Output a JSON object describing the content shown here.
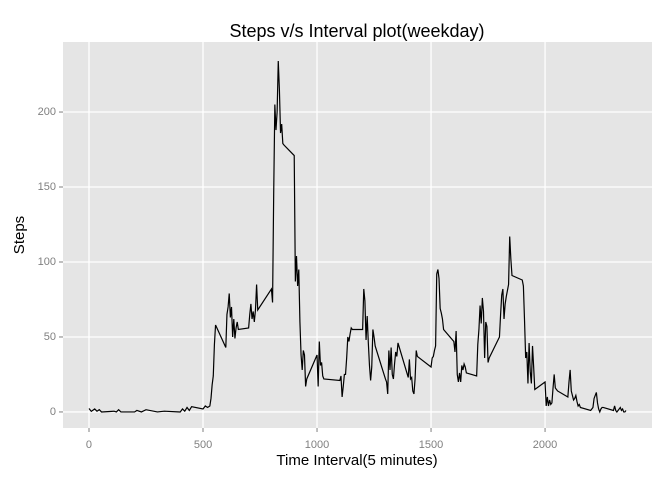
{
  "chart_data": {
    "type": "line",
    "title": "Steps v/s Interval plot(weekday)",
    "x_label": "Time Interval(5 minutes)",
    "y_label": "Steps",
    "color": "#000000",
    "grid": true,
    "xlim": [
      -114,
      2469
    ],
    "ylim": [
      -10.7,
      246.7
    ],
    "xticks": [
      0,
      500,
      1000,
      1500,
      2000
    ],
    "yticks": [
      0,
      50,
      100,
      150,
      200
    ],
    "x": [
      0,
      10,
      25,
      35,
      45,
      55,
      100,
      110,
      120,
      130,
      140,
      200,
      210,
      230,
      250,
      300,
      330,
      400,
      410,
      420,
      430,
      440,
      450,
      500,
      510,
      520,
      530,
      535,
      540,
      545,
      550,
      555,
      600,
      605,
      610,
      615,
      620,
      625,
      630,
      635,
      640,
      645,
      650,
      655,
      700,
      705,
      710,
      715,
      720,
      725,
      730,
      735,
      740,
      800,
      805,
      810,
      815,
      820,
      825,
      830,
      835,
      840,
      845,
      850,
      855,
      900,
      905,
      910,
      915,
      920,
      925,
      930,
      935,
      940,
      945,
      950,
      955,
      1000,
      1005,
      1010,
      1015,
      1020,
      1025,
      1030,
      1100,
      1105,
      1110,
      1115,
      1120,
      1125,
      1130,
      1135,
      1140,
      1145,
      1150,
      1155,
      1200,
      1205,
      1210,
      1215,
      1220,
      1225,
      1230,
      1235,
      1240,
      1245,
      1250,
      1255,
      1300,
      1305,
      1310,
      1315,
      1320,
      1325,
      1330,
      1335,
      1340,
      1345,
      1350,
      1355,
      1400,
      1405,
      1410,
      1415,
      1420,
      1425,
      1430,
      1435,
      1440,
      1500,
      1505,
      1510,
      1515,
      1520,
      1525,
      1530,
      1535,
      1540,
      1545,
      1550,
      1555,
      1600,
      1605,
      1610,
      1615,
      1620,
      1625,
      1630,
      1635,
      1640,
      1645,
      1650,
      1655,
      1700,
      1705,
      1710,
      1715,
      1720,
      1725,
      1730,
      1735,
      1740,
      1745,
      1750,
      1755,
      1800,
      1805,
      1810,
      1815,
      1820,
      1825,
      1830,
      1835,
      1840,
      1845,
      1850,
      1855,
      1900,
      1905,
      1910,
      1915,
      1920,
      1925,
      1930,
      1935,
      1940,
      1945,
      1950,
      1955,
      2000,
      2005,
      2010,
      2015,
      2020,
      2025,
      2030,
      2035,
      2040,
      2045,
      2050,
      2055,
      2100,
      2105,
      2110,
      2115,
      2120,
      2125,
      2130,
      2135,
      2140,
      2145,
      2150,
      2155,
      2200,
      2205,
      2210,
      2215,
      2220,
      2225,
      2230,
      2235,
      2240,
      2245,
      2250,
      2255,
      2300,
      2305,
      2310,
      2315,
      2320,
      2325,
      2330,
      2335,
      2340,
      2345,
      2350,
      2355
    ],
    "values": [
      2.3,
      0.4,
      2,
      0.5,
      1.5,
      0,
      0.4,
      0.5,
      0,
      1.5,
      0,
      0,
      1,
      0,
      1.5,
      0,
      0.5,
      0,
      2,
      0.5,
      3,
      1,
      3.5,
      2,
      4,
      3,
      4,
      9,
      18,
      24,
      45,
      58,
      43,
      65,
      70,
      79,
      63,
      70,
      50,
      62,
      49,
      56,
      60,
      55,
      56,
      65,
      72,
      62,
      67,
      60,
      68,
      85,
      68,
      82,
      73,
      146,
      205,
      188,
      200,
      234,
      215,
      186,
      192,
      179,
      178,
      171,
      87,
      104,
      84,
      95,
      60,
      38,
      28,
      41,
      38,
      17,
      22,
      38,
      17,
      47,
      31,
      33,
      24,
      22,
      21,
      24,
      10,
      17,
      25,
      25,
      36,
      50,
      47,
      52,
      56,
      55,
      55,
      82,
      74,
      48,
      64,
      46,
      31,
      21,
      30,
      55,
      50,
      44,
      22,
      20,
      12,
      41,
      28,
      43,
      25,
      22,
      32,
      40,
      37,
      46,
      23,
      35,
      22,
      23,
      14,
      12,
      22,
      41,
      37,
      30,
      36,
      37,
      41,
      44,
      92,
      95,
      89,
      69,
      66,
      62,
      55,
      47,
      40,
      54,
      25,
      20,
      26,
      20,
      31,
      28,
      32,
      30,
      26,
      24,
      45,
      55,
      71,
      59,
      76,
      67,
      36,
      60,
      57,
      33,
      36,
      50,
      65,
      78,
      82,
      62,
      72,
      77,
      81,
      85,
      117,
      102,
      91,
      88,
      84,
      61,
      36,
      40,
      19,
      46,
      27,
      19,
      44,
      30,
      15,
      20,
      4,
      10,
      4,
      8,
      5,
      6,
      16,
      25,
      16,
      15,
      14,
      10,
      20,
      28,
      14,
      11,
      8,
      9,
      11,
      7,
      4,
      5,
      3,
      1,
      2,
      3,
      9,
      11,
      13,
      6,
      2,
      0,
      2,
      3,
      3,
      1,
      4,
      1,
      0,
      1,
      2,
      3,
      1,
      2,
      0,
      0,
      1
    ]
  }
}
